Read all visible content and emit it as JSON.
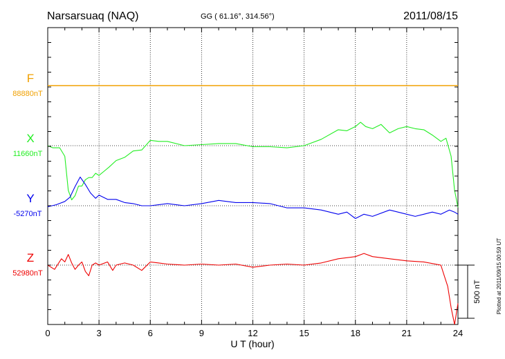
{
  "header": {
    "station": "Narsarsuaq (NAQ)",
    "coords": "GG ( 61.16°, 314.56°)",
    "date": "2011/08/15"
  },
  "footer": {
    "plotted": "Plotted at 2011/09/15 00:59 UT"
  },
  "chart_data": {
    "type": "line",
    "xlabel": "U T (hour)",
    "xlim": [
      0,
      24
    ],
    "xticks": [
      "0",
      "3",
      "6",
      "9",
      "12",
      "15",
      "18",
      "21",
      "24"
    ],
    "grid": true,
    "scale_bar_label": "500 nT",
    "scale_bar_nT": 500,
    "series": [
      {
        "name": "F",
        "baseline_label": "88880nT",
        "color": "#f0a000",
        "x": [
          0,
          24
        ],
        "dev": [
          0,
          0
        ]
      },
      {
        "name": "X",
        "baseline_label": "11660nT",
        "color": "#22ee22",
        "x": [
          0,
          0.3,
          0.7,
          1.0,
          1.2,
          1.4,
          1.6,
          1.8,
          2.0,
          2.2,
          2.4,
          2.6,
          2.8,
          3.0,
          3.3,
          3.6,
          4.0,
          4.5,
          5.0,
          5.5,
          6.0,
          6.5,
          7.0,
          8.0,
          9.0,
          10.0,
          11.0,
          12.0,
          13.0,
          14.0,
          15.0,
          16.0,
          17.0,
          17.5,
          18.0,
          18.3,
          18.6,
          19.0,
          19.5,
          20.0,
          20.5,
          21.0,
          21.5,
          22.0,
          22.5,
          23.0,
          23.3,
          23.6,
          23.8,
          24.0
        ],
        "dev": [
          0,
          -20,
          -20,
          -100,
          -420,
          -510,
          -470,
          -380,
          -380,
          -320,
          -300,
          -300,
          -260,
          -280,
          -240,
          -200,
          -140,
          -110,
          -50,
          -40,
          50,
          40,
          40,
          0,
          10,
          20,
          20,
          -10,
          -10,
          -20,
          0,
          60,
          150,
          140,
          180,
          220,
          180,
          160,
          200,
          120,
          160,
          180,
          160,
          150,
          100,
          40,
          70,
          -100,
          -420,
          -580
        ]
      },
      {
        "name": "Y",
        "baseline_label": "-5270nT",
        "color": "#0000ee",
        "x": [
          0,
          0.5,
          1.0,
          1.3,
          1.6,
          1.9,
          2.2,
          2.5,
          2.8,
          3.0,
          3.5,
          4.0,
          4.5,
          5.0,
          5.5,
          6.0,
          7.0,
          8.0,
          9.0,
          10.0,
          11.0,
          12.0,
          13.0,
          14.0,
          15.0,
          16.0,
          17.0,
          17.5,
          18.0,
          18.5,
          19.0,
          20.0,
          21.0,
          21.5,
          22.0,
          22.5,
          23.0,
          23.5,
          23.8,
          24.0
        ],
        "dev": [
          -10,
          10,
          40,
          80,
          180,
          270,
          200,
          120,
          70,
          100,
          60,
          60,
          30,
          20,
          0,
          0,
          20,
          0,
          20,
          50,
          30,
          30,
          20,
          -20,
          -20,
          -40,
          -80,
          -60,
          -120,
          -80,
          -100,
          -40,
          -80,
          -100,
          -80,
          -60,
          -80,
          -40,
          -60,
          -80
        ]
      },
      {
        "name": "Z",
        "baseline_label": "52980nT",
        "color": "#ee0000",
        "x": [
          0,
          0.4,
          0.8,
          1.0,
          1.2,
          1.4,
          1.6,
          1.8,
          2.0,
          2.2,
          2.4,
          2.6,
          2.8,
          3.0,
          3.5,
          3.8,
          4.0,
          4.5,
          5.0,
          5.5,
          6.0,
          6.5,
          7.0,
          8.0,
          9.0,
          10.0,
          11.0,
          12.0,
          13.0,
          14.0,
          15.0,
          16.0,
          17.0,
          18.0,
          18.5,
          19.0,
          20.0,
          20.5,
          21.0,
          22.0,
          23.0,
          23.2,
          23.4,
          23.6,
          23.8,
          24.0
        ],
        "dev": [
          0,
          -40,
          60,
          30,
          100,
          20,
          -40,
          0,
          30,
          -60,
          -100,
          0,
          20,
          0,
          30,
          -50,
          0,
          20,
          0,
          -50,
          30,
          20,
          10,
          0,
          10,
          0,
          10,
          -20,
          0,
          10,
          0,
          20,
          60,
          80,
          110,
          80,
          60,
          50,
          40,
          30,
          0,
          -100,
          -200,
          -400,
          -580,
          -360
        ]
      }
    ]
  }
}
